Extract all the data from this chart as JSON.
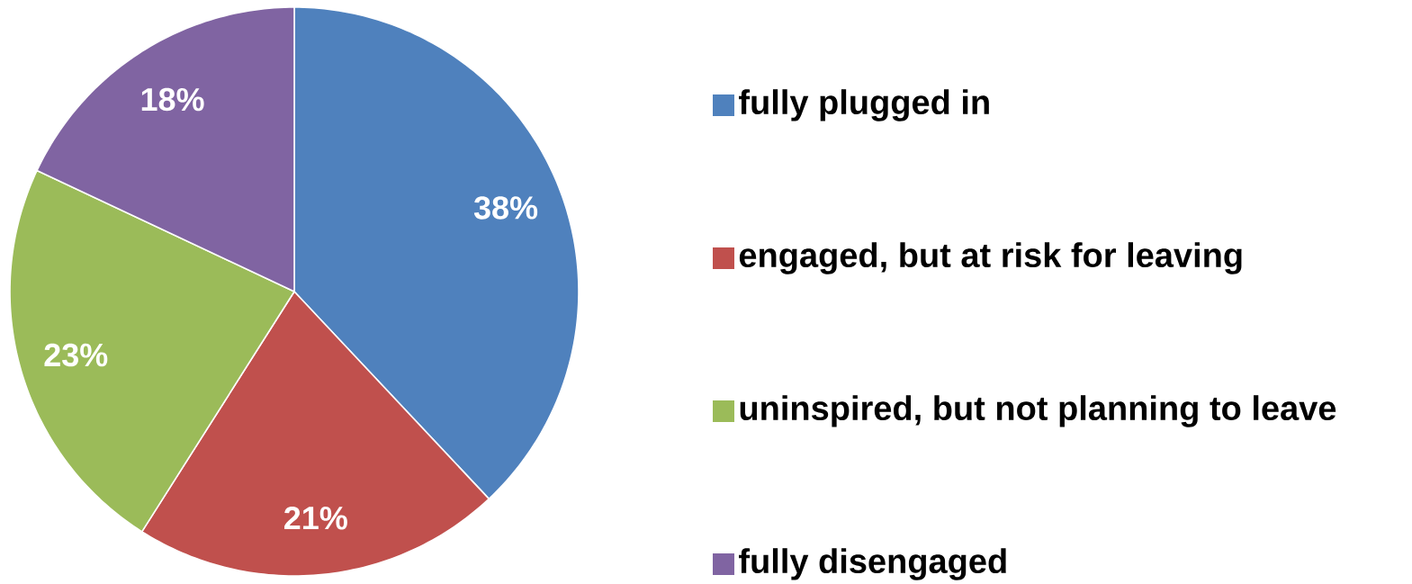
{
  "chart_data": {
    "type": "pie",
    "categories": [
      "fully plugged in",
      "engaged, but at risk for leaving",
      "uninspired, but not planning to leave",
      "fully disengaged"
    ],
    "values": [
      38,
      21,
      23,
      18
    ],
    "colors": [
      "#4f81bd",
      "#c0504d",
      "#9bbb59",
      "#8064a2"
    ],
    "value_labels": [
      "38%",
      "21%",
      "23%",
      "18%"
    ],
    "legend": "right"
  }
}
